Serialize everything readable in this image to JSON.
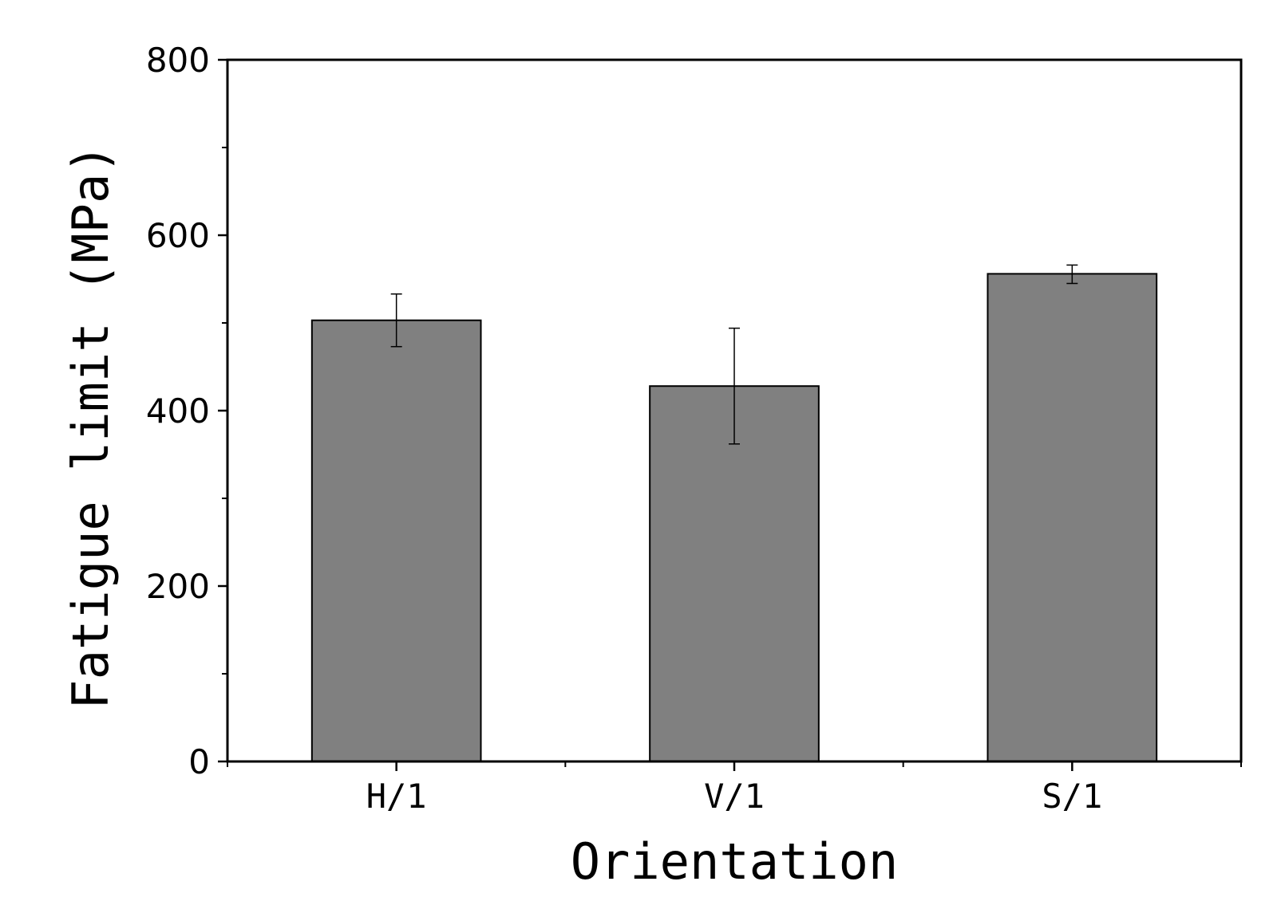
{
  "chart_data": {
    "type": "bar",
    "title": "",
    "xlabel": "Orientation",
    "ylabel": "Fatigue limit (MPa)",
    "categories": [
      "H/1",
      "V/1",
      "S/1"
    ],
    "values": [
      503,
      428,
      556
    ],
    "error_low": [
      473,
      362,
      545
    ],
    "error_high": [
      533,
      494,
      566
    ],
    "ylim": [
      0,
      800
    ],
    "y_major_ticks": [
      0,
      200,
      400,
      600,
      800
    ],
    "y_minor_ticks": [
      100,
      300,
      500,
      700
    ],
    "grid": false,
    "legend": "none",
    "bar_color": "#808080",
    "bar_edge_color": "#000000"
  }
}
